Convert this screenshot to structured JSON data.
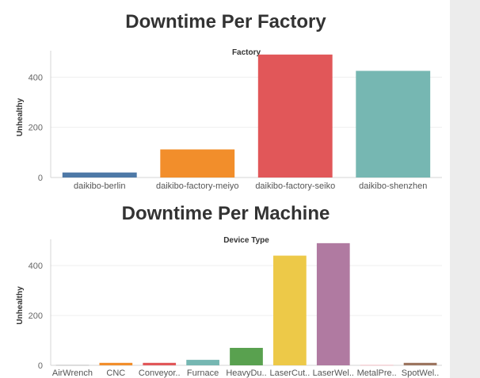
{
  "chart_data": [
    {
      "type": "bar",
      "title": "Downtime Per Factory",
      "header": "Factory",
      "ylabel": "Unhealthy",
      "ylim": [
        0,
        480
      ],
      "yticks": [
        0,
        200,
        400
      ],
      "grid": true,
      "categories": [
        "daikibo-berlin",
        "daikibo-factory-meiyo",
        "daikibo-factory-seiko",
        "daikibo-shenzhen"
      ],
      "values": [
        20,
        112,
        490,
        425
      ],
      "colors": [
        "#4e79a7",
        "#f28e2b",
        "#e15759",
        "#76b7b2"
      ]
    },
    {
      "type": "bar",
      "title": "Downtime Per Machine",
      "header": "Device Type",
      "ylabel": "Unhealthy",
      "ylim": [
        0,
        480
      ],
      "yticks": [
        0,
        200,
        400
      ],
      "grid": true,
      "categories": [
        "AirWrench",
        "CNC",
        "Conveyor..",
        "Furnace",
        "HeavyDu..",
        "LaserCut..",
        "LaserWel..",
        "MetalPre..",
        "SpotWel.."
      ],
      "values": [
        1,
        10,
        10,
        22,
        70,
        440,
        490,
        1,
        10
      ],
      "colors": [
        "#a0a0a0",
        "#f28e2b",
        "#e15759",
        "#76b7b2",
        "#59a14f",
        "#edc948",
        "#b07aa1",
        "#ff9da7",
        "#9c755f"
      ]
    }
  ]
}
